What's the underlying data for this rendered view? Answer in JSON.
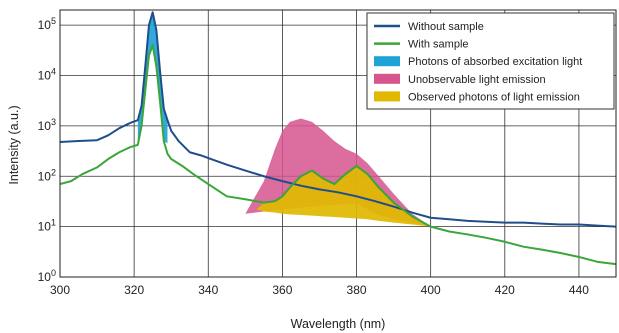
{
  "chart_data": {
    "type": "line",
    "xlabel": "Wavelength (nm)",
    "ylabel": "Intensity (a.u.)",
    "y_scale": "log",
    "xlim": [
      300,
      450
    ],
    "ylim": [
      1,
      200000
    ],
    "grid": true,
    "legend_position": "top-right",
    "x_ticks": [
      300,
      320,
      340,
      360,
      380,
      400,
      420,
      440
    ],
    "y_ticks": [
      {
        "value": 1,
        "base": "10",
        "exp": "0"
      },
      {
        "value": 10,
        "base": "10",
        "exp": "1"
      },
      {
        "value": 100,
        "base": "10",
        "exp": "2"
      },
      {
        "value": 1000,
        "base": "10",
        "exp": "3"
      },
      {
        "value": 10000,
        "base": "10",
        "exp": "4"
      },
      {
        "value": 100000,
        "base": "10",
        "exp": "5"
      }
    ],
    "series": [
      {
        "name": "Without sample",
        "color": "#1f4e8c",
        "x": [
          300,
          305,
          310,
          313,
          316,
          319,
          321,
          322,
          323,
          324,
          325,
          326,
          327,
          328,
          329,
          330,
          332,
          335,
          338,
          340,
          345,
          350,
          355,
          360,
          365,
          370,
          375,
          380,
          385,
          390,
          395,
          400,
          405,
          410,
          415,
          420,
          425,
          430,
          435,
          440,
          445,
          450
        ],
        "y": [
          480,
          500,
          520,
          650,
          900,
          1150,
          1300,
          2500,
          15000,
          100000,
          180000,
          80000,
          12000,
          2200,
          1300,
          800,
          500,
          300,
          260,
          230,
          170,
          130,
          100,
          80,
          65,
          55,
          48,
          40,
          32,
          25,
          19,
          15,
          14,
          13,
          12.5,
          12,
          12,
          11.5,
          11,
          11,
          10.5,
          10
        ]
      },
      {
        "name": "With sample",
        "color": "#3aa63a",
        "x": [
          300,
          303,
          306,
          310,
          313,
          316,
          319,
          321,
          322,
          323,
          324,
          325,
          326,
          327,
          328,
          329,
          330,
          333,
          336,
          340,
          345,
          350,
          355,
          358,
          360,
          362,
          365,
          368,
          371,
          374,
          377,
          380,
          383,
          386,
          390,
          395,
          400,
          405,
          410,
          415,
          420,
          425,
          430,
          435,
          440,
          445,
          450
        ],
        "y": [
          70,
          80,
          110,
          150,
          220,
          300,
          380,
          420,
          1000,
          5000,
          25000,
          40000,
          15000,
          3000,
          500,
          280,
          220,
          160,
          110,
          70,
          40,
          35,
          30,
          32,
          40,
          60,
          100,
          130,
          90,
          70,
          110,
          160,
          110,
          60,
          30,
          16,
          10,
          8,
          7,
          6,
          5,
          4,
          3.5,
          3,
          2.5,
          2,
          1.8
        ]
      }
    ],
    "areas": [
      {
        "name": "Photons of absorbed excitation light",
        "color": "#1fa3d6",
        "x": [
          321,
          322,
          323,
          324,
          325,
          326,
          327,
          328,
          329
        ],
        "y_upper": [
          1300,
          2500,
          15000,
          100000,
          180000,
          80000,
          12000,
          2200,
          1300
        ],
        "y_lower": [
          420,
          1000,
          5000,
          25000,
          40000,
          15000,
          3000,
          500,
          450
        ]
      },
      {
        "name": "Unobservable light emission",
        "color": "#d6558e",
        "x": [
          350,
          355,
          358,
          360,
          362,
          365,
          368,
          371,
          374,
          377,
          380,
          383,
          386,
          390,
          395,
          400
        ],
        "y_upper": [
          18,
          80,
          350,
          800,
          1200,
          1400,
          1200,
          800,
          500,
          350,
          280,
          180,
          100,
          45,
          18,
          10
        ],
        "y_lower": [
          18,
          20,
          21,
          22,
          23,
          24,
          25,
          26,
          27,
          28,
          28,
          22,
          17,
          14,
          12,
          10
        ]
      },
      {
        "name": "Observed photons of light emission",
        "color": "#e0b800",
        "x": [
          353,
          355,
          358,
          360,
          362,
          365,
          368,
          371,
          374,
          377,
          380,
          383,
          386,
          390,
          395,
          400
        ],
        "y_upper": [
          22,
          30,
          32,
          40,
          60,
          100,
          130,
          90,
          70,
          110,
          160,
          110,
          60,
          30,
          16,
          10
        ],
        "y_lower": [
          22,
          20,
          19,
          18,
          17.5,
          17,
          16.5,
          16,
          15.5,
          15,
          14.5,
          14,
          13,
          12,
          11,
          10
        ]
      }
    ]
  }
}
